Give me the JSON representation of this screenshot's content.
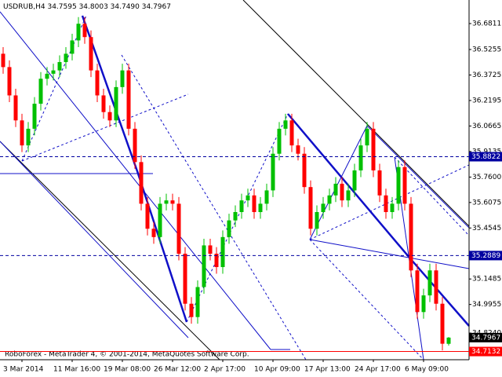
{
  "chart_data": {
    "type": "candlestick",
    "title": "USDRUB,H4",
    "title_ohlc": [
      "34.7595",
      "34.8003",
      "34.7490",
      "34.7967"
    ],
    "watermark": "RoboForex - MetaTrader 4, © 2001-2014, MetaQuotes Software Corp.",
    "up_color": "#00c000",
    "down_color": "#ff0000",
    "ylim": [
      34.664,
      36.8225
    ],
    "yticks": [
      {
        "value": 36.6811,
        "label": "36.6811"
      },
      {
        "value": 36.5255,
        "label": "36.5255"
      },
      {
        "value": 36.3725,
        "label": "36.3725"
      },
      {
        "value": 36.2195,
        "label": "36.2195"
      },
      {
        "value": 36.0665,
        "label": "36.0665"
      },
      {
        "value": 35.9135,
        "label": "35.9135"
      },
      {
        "value": 35.76,
        "label": "35.7600"
      },
      {
        "value": 35.6075,
        "label": "35.6075"
      },
      {
        "value": 35.4545,
        "label": "35.4545"
      },
      {
        "value": 35.1485,
        "label": "35.1485"
      },
      {
        "value": 34.9955,
        "label": "34.9955"
      },
      {
        "value": 34.824,
        "label": "34.8240"
      }
    ],
    "levels": [
      35.8822,
      35.2889
    ],
    "level_color": "#0000a0",
    "current_price": 34.7967,
    "ask_line": 34.7132,
    "ask_color": "#ff0000",
    "categories": [
      null,
      null,
      null,
      "3 Mar 2014",
      null,
      null,
      null,
      null,
      null,
      null,
      null,
      "11 Mar 16:00",
      null,
      null,
      null,
      null,
      null,
      null,
      null,
      "19 Mar 08:00",
      null,
      null,
      null,
      null,
      null,
      null,
      null,
      "26 Mar 12:00",
      null,
      null,
      null,
      null,
      null,
      null,
      null,
      "2 Apr 17:00",
      null,
      null,
      null,
      null,
      null,
      null,
      null,
      "10 Apr 09:00",
      null,
      null,
      null,
      null,
      null,
      null,
      null,
      "17 Apr 13:00",
      null,
      null,
      null,
      null,
      null,
      null,
      null,
      "24 Apr 17:00",
      null,
      null,
      null,
      null,
      null,
      null,
      null,
      "6 May 09:00",
      null,
      null,
      null,
      null
    ],
    "ohlc": [
      [
        36.5,
        36.54,
        36.38,
        36.42
      ],
      [
        36.42,
        36.46,
        36.21,
        36.25
      ],
      [
        36.25,
        36.29,
        36.06,
        36.1
      ],
      [
        36.1,
        36.14,
        35.91,
        35.95
      ],
      [
        35.95,
        36.09,
        35.91,
        36.05
      ],
      [
        36.05,
        36.24,
        36.01,
        36.2
      ],
      [
        36.2,
        36.39,
        36.16,
        36.35
      ],
      [
        36.35,
        36.42,
        36.31,
        36.38
      ],
      [
        36.38,
        36.44,
        36.34,
        36.4
      ],
      [
        36.4,
        36.49,
        36.36,
        36.45
      ],
      [
        36.45,
        36.54,
        36.41,
        36.5
      ],
      [
        36.5,
        36.62,
        36.46,
        36.58
      ],
      [
        36.58,
        36.72,
        36.54,
        36.68
      ],
      [
        36.68,
        36.72,
        36.56,
        36.6
      ],
      [
        36.6,
        36.64,
        36.36,
        36.4
      ],
      [
        36.4,
        36.44,
        36.21,
        36.25
      ],
      [
        36.25,
        36.29,
        36.11,
        36.15
      ],
      [
        36.15,
        36.19,
        36.06,
        36.1
      ],
      [
        36.1,
        36.34,
        36.06,
        36.3
      ],
      [
        36.3,
        36.44,
        36.26,
        36.4
      ],
      [
        36.4,
        36.44,
        36.01,
        36.05
      ],
      [
        36.05,
        36.09,
        35.81,
        35.85
      ],
      [
        35.85,
        35.89,
        35.56,
        35.6
      ],
      [
        35.6,
        35.64,
        35.41,
        35.45
      ],
      [
        35.45,
        35.49,
        35.36,
        35.4
      ],
      [
        35.4,
        35.64,
        35.36,
        35.6
      ],
      [
        35.6,
        35.66,
        35.56,
        35.62
      ],
      [
        35.62,
        35.66,
        35.56,
        35.6
      ],
      [
        35.6,
        35.64,
        35.26,
        35.3
      ],
      [
        35.3,
        35.34,
        34.96,
        35.0
      ],
      [
        35.0,
        35.04,
        34.88,
        34.92
      ],
      [
        34.92,
        35.14,
        34.88,
        35.1
      ],
      [
        35.1,
        35.39,
        35.06,
        35.35
      ],
      [
        35.35,
        35.39,
        35.26,
        35.3
      ],
      [
        35.3,
        35.34,
        35.18,
        35.22
      ],
      [
        35.22,
        35.44,
        35.18,
        35.4
      ],
      [
        35.4,
        35.54,
        35.36,
        35.5
      ],
      [
        35.5,
        35.59,
        35.46,
        35.55
      ],
      [
        35.55,
        35.66,
        35.51,
        35.62
      ],
      [
        35.62,
        35.69,
        35.58,
        35.65
      ],
      [
        35.65,
        35.69,
        35.51,
        35.55
      ],
      [
        35.55,
        35.64,
        35.51,
        35.6
      ],
      [
        35.6,
        35.72,
        35.56,
        35.68
      ],
      [
        35.68,
        35.94,
        35.64,
        35.9
      ],
      [
        35.9,
        36.09,
        35.86,
        36.05
      ],
      [
        36.05,
        36.14,
        36.01,
        36.1
      ],
      [
        36.1,
        36.14,
        35.91,
        35.95
      ],
      [
        35.95,
        35.99,
        35.86,
        35.9
      ],
      [
        35.9,
        35.94,
        35.66,
        35.7
      ],
      [
        35.7,
        35.74,
        35.41,
        35.45
      ],
      [
        35.45,
        35.59,
        35.41,
        35.55
      ],
      [
        35.55,
        35.64,
        35.51,
        35.6
      ],
      [
        35.6,
        35.69,
        35.56,
        35.65
      ],
      [
        35.65,
        35.76,
        35.61,
        35.72
      ],
      [
        35.72,
        35.76,
        35.58,
        35.62
      ],
      [
        35.62,
        35.72,
        35.58,
        35.68
      ],
      [
        35.68,
        35.84,
        35.64,
        35.8
      ],
      [
        35.8,
        35.99,
        35.76,
        35.95
      ],
      [
        35.95,
        36.09,
        35.91,
        36.05
      ],
      [
        36.05,
        36.09,
        35.76,
        35.8
      ],
      [
        35.8,
        35.84,
        35.61,
        35.65
      ],
      [
        35.65,
        35.69,
        35.51,
        35.55
      ],
      [
        35.55,
        35.64,
        35.51,
        35.6
      ],
      [
        35.6,
        35.86,
        35.56,
        35.82
      ],
      [
        35.82,
        35.86,
        35.56,
        35.6
      ],
      [
        35.6,
        35.64,
        35.16,
        35.2
      ],
      [
        35.2,
        35.24,
        34.91,
        34.95
      ],
      [
        34.95,
        35.09,
        34.91,
        35.05
      ],
      [
        35.05,
        35.24,
        35.01,
        35.2
      ],
      [
        35.2,
        35.24,
        34.96,
        35.0
      ],
      [
        35.0,
        35.04,
        34.72,
        34.76
      ],
      [
        34.7595,
        34.8003,
        34.749,
        34.7967
      ]
    ]
  }
}
